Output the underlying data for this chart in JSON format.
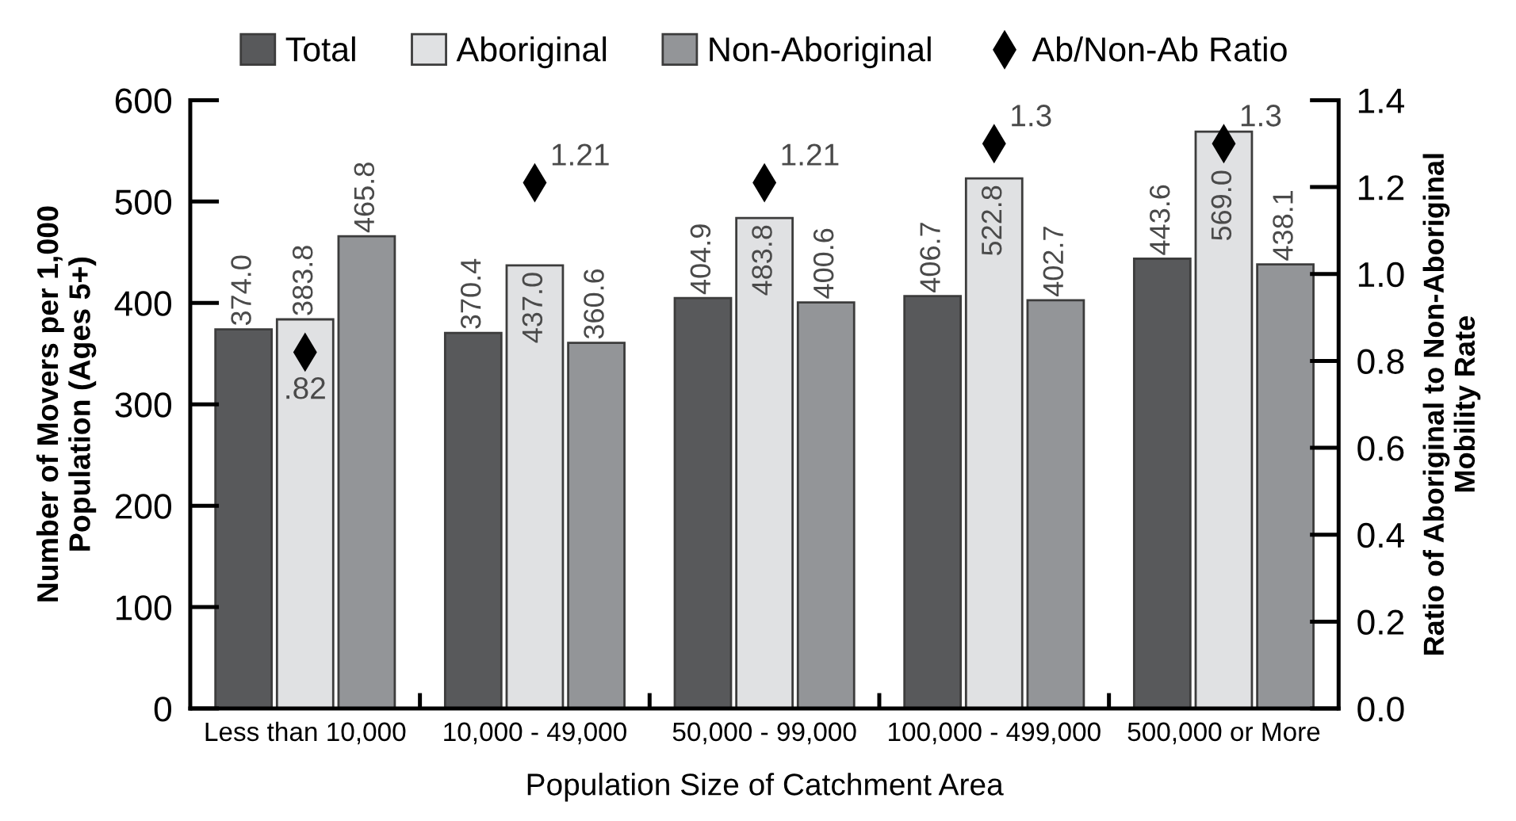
{
  "chart_data": {
    "type": "bar",
    "categories": [
      "Less than 10,000",
      "10,000 - 49,000",
      "50,000 - 99,000",
      "100,000 - 499,000",
      "500,000 or More"
    ],
    "xlabel": "Population Size of Catchment Area",
    "ylabel": "Number of Movers per 1,000\nPopulation (Ages 5+)",
    "y2label": "Ratio of Aboriginal to Non-Aboriginal\nMobility Rate",
    "ylim": [
      0,
      600
    ],
    "yticks": [
      0,
      100,
      200,
      300,
      400,
      500,
      600
    ],
    "y2lim": [
      0,
      1.4
    ],
    "y2ticks": [
      {
        "value": 0,
        "label": "0.0"
      },
      0.2,
      0.4,
      0.6,
      0.8,
      {
        "value": 1,
        "label": "1.0"
      },
      1.2,
      1.4
    ],
    "legend": "top",
    "grid": false,
    "series": [
      {
        "name": "Total",
        "color": "#58595b",
        "values": [
          374.0,
          370.4,
          404.9,
          406.7,
          443.6
        ],
        "value_labels": [
          "374.0",
          "370.4",
          "404.9",
          "406.7",
          "443.6"
        ]
      },
      {
        "name": "Aboriginal",
        "color": "#e0e1e3",
        "values": [
          383.8,
          437.0,
          483.8,
          522.8,
          569.0
        ],
        "value_labels": [
          "383.8",
          "437.0",
          "483.8",
          "522.8",
          "569.0"
        ]
      },
      {
        "name": "Non-Aboriginal",
        "color": "#939598",
        "values": [
          465.8,
          360.6,
          400.6,
          402.7,
          438.1
        ],
        "value_labels": [
          "465.8",
          "360.6",
          "400.6",
          "402.7",
          "438.1"
        ]
      },
      {
        "name": "Ab/Non-Ab Ratio",
        "type": "scatter",
        "axis": "y2",
        "marker": "diamond",
        "color": "#000000",
        "values": [
          0.82,
          1.21,
          1.21,
          1.3,
          1.3
        ],
        "value_labels": [
          ".82",
          "1.21",
          "1.21",
          "1.3",
          "1.3"
        ]
      }
    ]
  }
}
